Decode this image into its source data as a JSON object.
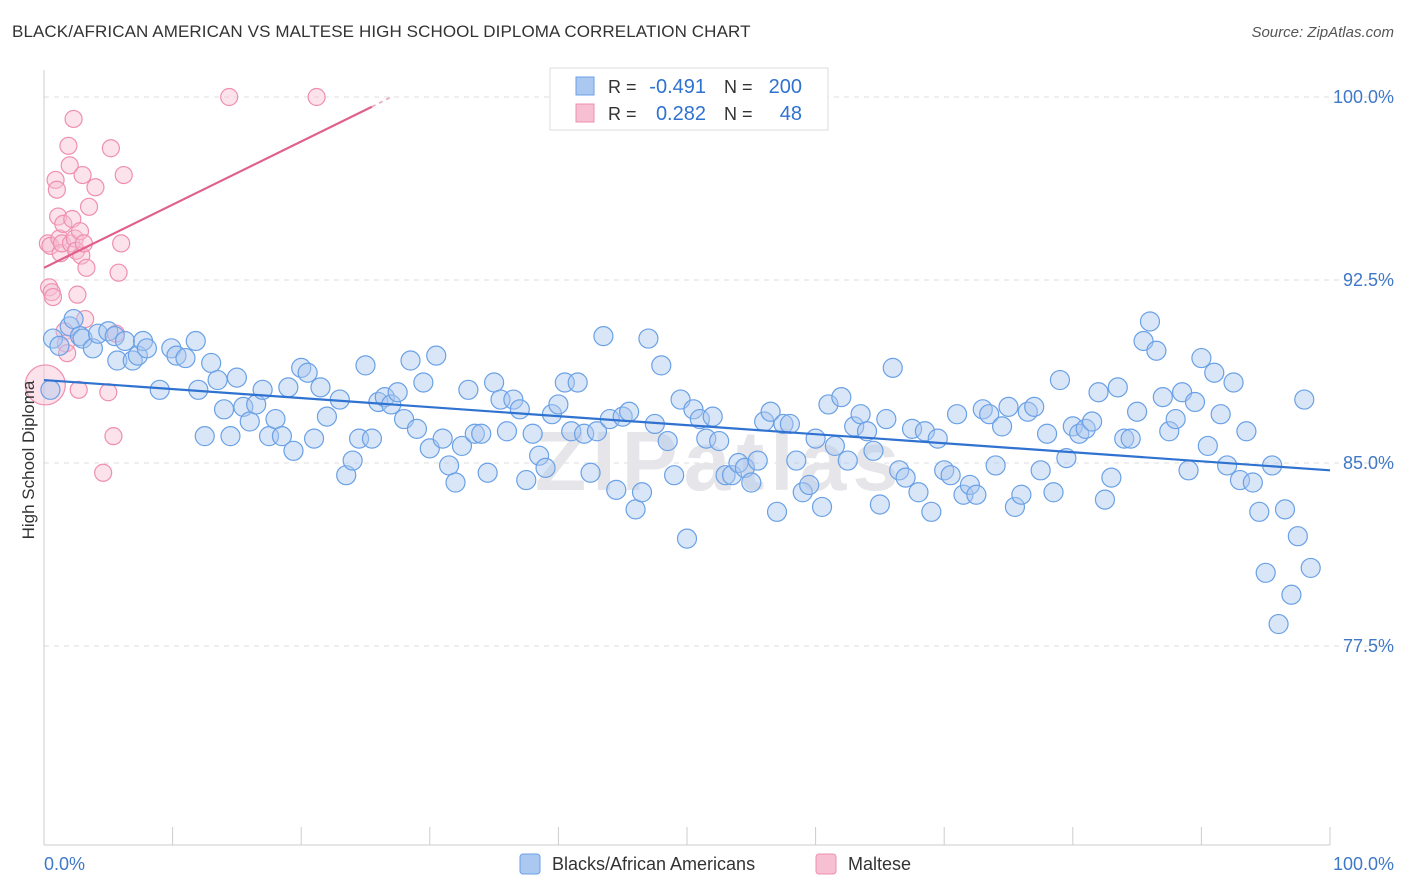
{
  "title": "BLACK/AFRICAN AMERICAN VS MALTESE HIGH SCHOOL DIPLOMA CORRELATION CHART",
  "source": "Source: ZipAtlas.com",
  "watermark": "ZIPatlas",
  "chart_data": {
    "type": "scatter",
    "ylabel": "High School Diploma",
    "xlim": [
      0,
      100
    ],
    "ylim": [
      70.5,
      101
    ],
    "x_tick_labels": [
      "0.0%",
      "100.0%"
    ],
    "y_ticks": [
      {
        "value": 100.0,
        "label": "100.0%"
      },
      {
        "value": 92.5,
        "label": "92.5%"
      },
      {
        "value": 85.0,
        "label": "85.0%"
      },
      {
        "value": 77.5,
        "label": "77.5%"
      }
    ],
    "grid": "horizontal dashed",
    "legend_top": [
      {
        "r_label": "R =",
        "r": "-0.491",
        "n_label": "N =",
        "n": "200",
        "color": "#6aa1e6"
      },
      {
        "r_label": "R =",
        "r": "0.282",
        "n_label": "N =",
        "n": "48",
        "color": "#ef8fb0"
      }
    ],
    "series": [
      {
        "name": "Blacks/African Americans",
        "color": "#6aa1e6",
        "fill": "#aac8f0",
        "trend_color": "#2f72d0",
        "trend": {
          "x0": 0,
          "y0": 88.4,
          "x1": 100,
          "y1": 84.7
        },
        "points": [
          [
            0.5,
            88.0
          ],
          [
            0.7,
            90.1
          ],
          [
            1.2,
            89.8
          ],
          [
            2.0,
            90.6
          ],
          [
            2.3,
            90.9
          ],
          [
            2.8,
            90.2
          ],
          [
            3.0,
            90.1
          ],
          [
            3.8,
            89.7
          ],
          [
            4.2,
            90.3
          ],
          [
            5.0,
            90.4
          ],
          [
            5.5,
            90.2
          ],
          [
            5.7,
            89.2
          ],
          [
            6.3,
            90.0
          ],
          [
            6.9,
            89.2
          ],
          [
            7.3,
            89.4
          ],
          [
            7.7,
            90.0
          ],
          [
            8.0,
            89.7
          ],
          [
            9.0,
            88.0
          ],
          [
            9.9,
            89.7
          ],
          [
            10.3,
            89.4
          ],
          [
            11.0,
            89.3
          ],
          [
            11.8,
            90.0
          ],
          [
            12.0,
            88.0
          ],
          [
            12.5,
            86.1
          ],
          [
            13.0,
            89.1
          ],
          [
            13.5,
            88.4
          ],
          [
            14.0,
            87.2
          ],
          [
            14.5,
            86.1
          ],
          [
            15.0,
            88.5
          ],
          [
            15.5,
            87.3
          ],
          [
            16.0,
            86.7
          ],
          [
            16.5,
            87.4
          ],
          [
            17.0,
            88.0
          ],
          [
            17.5,
            86.1
          ],
          [
            18.0,
            86.8
          ],
          [
            18.5,
            86.1
          ],
          [
            19.0,
            88.1
          ],
          [
            19.4,
            85.5
          ],
          [
            20.0,
            88.9
          ],
          [
            20.5,
            88.7
          ],
          [
            21.0,
            86.0
          ],
          [
            21.5,
            88.1
          ],
          [
            22.0,
            86.9
          ],
          [
            23.0,
            87.6
          ],
          [
            23.5,
            84.5
          ],
          [
            24.0,
            85.1
          ],
          [
            24.5,
            86.0
          ],
          [
            25.0,
            89.0
          ],
          [
            25.5,
            86.0
          ],
          [
            26.0,
            87.5
          ],
          [
            26.5,
            87.7
          ],
          [
            27.0,
            87.4
          ],
          [
            27.5,
            87.9
          ],
          [
            28.0,
            86.8
          ],
          [
            28.5,
            89.2
          ],
          [
            29.0,
            86.4
          ],
          [
            29.5,
            88.3
          ],
          [
            30.0,
            85.6
          ],
          [
            30.5,
            89.4
          ],
          [
            31.0,
            86.0
          ],
          [
            31.5,
            84.9
          ],
          [
            32.0,
            84.2
          ],
          [
            32.5,
            85.7
          ],
          [
            33.0,
            88.0
          ],
          [
            33.5,
            86.2
          ],
          [
            34.0,
            86.2
          ],
          [
            34.5,
            84.6
          ],
          [
            35.0,
            88.3
          ],
          [
            35.5,
            87.6
          ],
          [
            36.0,
            86.3
          ],
          [
            36.5,
            87.6
          ],
          [
            37.0,
            87.2
          ],
          [
            37.5,
            84.3
          ],
          [
            38.0,
            86.2
          ],
          [
            38.5,
            85.3
          ],
          [
            39.0,
            84.8
          ],
          [
            39.5,
            87.0
          ],
          [
            40.0,
            87.4
          ],
          [
            40.5,
            88.3
          ],
          [
            41.0,
            86.3
          ],
          [
            41.5,
            88.3
          ],
          [
            42.0,
            86.2
          ],
          [
            42.5,
            84.6
          ],
          [
            43.0,
            86.3
          ],
          [
            43.5,
            90.2
          ],
          [
            44.0,
            86.8
          ],
          [
            44.5,
            83.9
          ],
          [
            45.0,
            86.9
          ],
          [
            45.5,
            87.1
          ],
          [
            46.0,
            83.1
          ],
          [
            46.5,
            83.8
          ],
          [
            47.0,
            90.1
          ],
          [
            47.5,
            86.6
          ],
          [
            48.0,
            89.0
          ],
          [
            48.5,
            85.9
          ],
          [
            49.0,
            84.5
          ],
          [
            49.5,
            87.6
          ],
          [
            50.0,
            81.9
          ],
          [
            50.5,
            87.2
          ],
          [
            51.0,
            86.8
          ],
          [
            51.5,
            86.0
          ],
          [
            52.0,
            86.9
          ],
          [
            52.5,
            85.9
          ],
          [
            53.0,
            84.5
          ],
          [
            53.5,
            84.5
          ],
          [
            54.0,
            85.0
          ],
          [
            54.5,
            84.8
          ],
          [
            55.0,
            84.2
          ],
          [
            55.5,
            85.1
          ],
          [
            56.0,
            86.7
          ],
          [
            56.5,
            87.1
          ],
          [
            57.0,
            83.0
          ],
          [
            57.5,
            86.6
          ],
          [
            58.0,
            86.6
          ],
          [
            58.5,
            85.1
          ],
          [
            59.0,
            83.8
          ],
          [
            59.5,
            84.1
          ],
          [
            60.0,
            86.0
          ],
          [
            60.5,
            83.2
          ],
          [
            61.0,
            87.4
          ],
          [
            61.5,
            85.7
          ],
          [
            62.0,
            87.7
          ],
          [
            62.5,
            85.1
          ],
          [
            63.0,
            86.5
          ],
          [
            63.5,
            87.0
          ],
          [
            64.0,
            86.3
          ],
          [
            64.5,
            85.5
          ],
          [
            65.0,
            83.3
          ],
          [
            65.5,
            86.8
          ],
          [
            66.0,
            88.9
          ],
          [
            66.5,
            84.7
          ],
          [
            67.0,
            84.4
          ],
          [
            67.5,
            86.4
          ],
          [
            68.0,
            83.8
          ],
          [
            68.5,
            86.3
          ],
          [
            69.0,
            83.0
          ],
          [
            69.5,
            86.0
          ],
          [
            70.0,
            84.7
          ],
          [
            70.5,
            84.5
          ],
          [
            71.0,
            87.0
          ],
          [
            71.5,
            83.7
          ],
          [
            72.0,
            84.1
          ],
          [
            72.5,
            83.7
          ],
          [
            73.0,
            87.2
          ],
          [
            73.5,
            87.0
          ],
          [
            74.0,
            84.9
          ],
          [
            74.5,
            86.5
          ],
          [
            75.0,
            87.3
          ],
          [
            75.5,
            83.2
          ],
          [
            76.0,
            83.7
          ],
          [
            76.5,
            87.1
          ],
          [
            77.0,
            87.3
          ],
          [
            77.5,
            84.7
          ],
          [
            78.0,
            86.2
          ],
          [
            78.5,
            83.8
          ],
          [
            79.0,
            88.4
          ],
          [
            79.5,
            85.2
          ],
          [
            80.0,
            86.5
          ],
          [
            80.5,
            86.2
          ],
          [
            81.0,
            86.4
          ],
          [
            81.5,
            86.7
          ],
          [
            82.0,
            87.9
          ],
          [
            82.5,
            83.5
          ],
          [
            83.0,
            84.4
          ],
          [
            83.5,
            88.1
          ],
          [
            84.0,
            86.0
          ],
          [
            84.5,
            86.0
          ],
          [
            85.0,
            87.1
          ],
          [
            85.5,
            90.0
          ],
          [
            86.0,
            90.8
          ],
          [
            86.5,
            89.6
          ],
          [
            87.0,
            87.7
          ],
          [
            87.5,
            86.3
          ],
          [
            88.0,
            86.8
          ],
          [
            88.5,
            87.9
          ],
          [
            89.0,
            84.7
          ],
          [
            89.5,
            87.5
          ],
          [
            90.0,
            89.3
          ],
          [
            90.5,
            85.7
          ],
          [
            91.0,
            88.7
          ],
          [
            91.5,
            87.0
          ],
          [
            92.0,
            84.9
          ],
          [
            92.5,
            88.3
          ],
          [
            93.0,
            84.3
          ],
          [
            93.5,
            86.3
          ],
          [
            94.0,
            84.2
          ],
          [
            94.5,
            83.0
          ],
          [
            95.0,
            80.5
          ],
          [
            95.5,
            84.9
          ],
          [
            96.0,
            78.4
          ],
          [
            96.5,
            83.1
          ],
          [
            97.0,
            79.6
          ],
          [
            97.5,
            82.0
          ],
          [
            98.0,
            87.6
          ],
          [
            98.5,
            80.7
          ]
        ]
      },
      {
        "name": "Maltese",
        "color": "#ef8fb0",
        "fill": "#f6bfd2",
        "trend_color": "#e0608a",
        "trend": {
          "x0": 0,
          "y0": 93.0,
          "x1": 25.5,
          "y1": 99.6
        },
        "trend_dash_to": {
          "x": 27,
          "y": 100.0
        },
        "points": [
          [
            0.3,
            94.0
          ],
          [
            0.4,
            92.2
          ],
          [
            0.5,
            93.9
          ],
          [
            0.6,
            92.0
          ],
          [
            0.7,
            91.8
          ],
          [
            0.9,
            96.6
          ],
          [
            1.0,
            96.2
          ],
          [
            1.1,
            95.1
          ],
          [
            1.2,
            94.2
          ],
          [
            1.3,
            93.6
          ],
          [
            1.4,
            94.0
          ],
          [
            1.5,
            94.8
          ],
          [
            1.6,
            90.4
          ],
          [
            1.7,
            89.9
          ],
          [
            1.8,
            89.5
          ],
          [
            1.9,
            98.0
          ],
          [
            2.0,
            97.2
          ],
          [
            2.1,
            94.0
          ],
          [
            2.2,
            95.0
          ],
          [
            2.3,
            99.1
          ],
          [
            2.4,
            94.2
          ],
          [
            2.5,
            93.7
          ],
          [
            2.6,
            91.9
          ],
          [
            2.7,
            88.0
          ],
          [
            2.8,
            94.5
          ],
          [
            2.9,
            93.5
          ],
          [
            3.0,
            96.8
          ],
          [
            3.1,
            94.0
          ],
          [
            3.2,
            90.9
          ],
          [
            3.3,
            93.0
          ],
          [
            3.5,
            95.5
          ],
          [
            4.0,
            96.3
          ],
          [
            4.6,
            84.6
          ],
          [
            5.0,
            87.9
          ],
          [
            5.2,
            97.9
          ],
          [
            5.4,
            86.1
          ],
          [
            5.6,
            90.3
          ],
          [
            5.8,
            92.8
          ],
          [
            6.0,
            94.0
          ],
          [
            6.2,
            96.8
          ],
          [
            14.4,
            100.0
          ],
          [
            21.2,
            100.0
          ]
        ]
      }
    ]
  }
}
